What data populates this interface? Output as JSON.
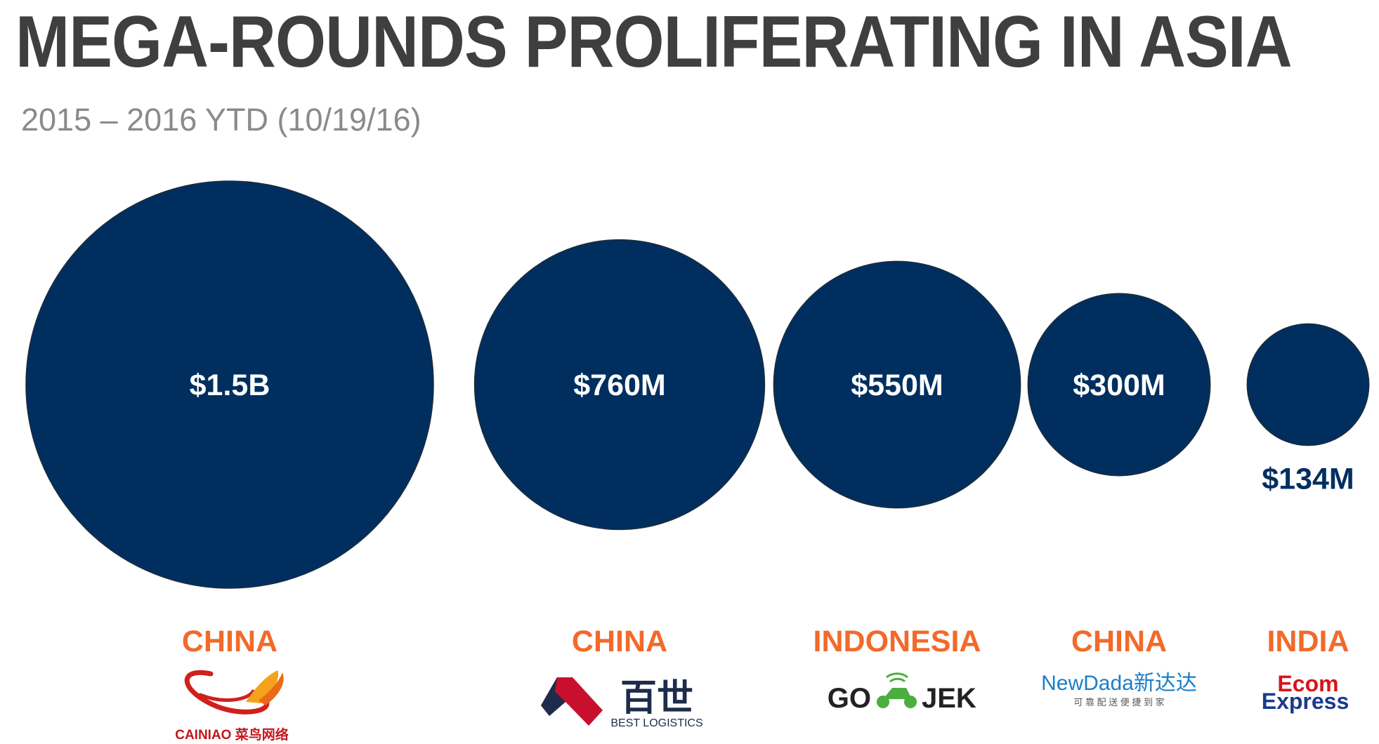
{
  "header": {
    "title": "MEGA-ROUNDS PROLIFERATING IN ASIA",
    "subtitle": "2015 – 2016 YTD (10/19/16)"
  },
  "colors": {
    "bubble": "#002f5f",
    "country": "#f26a2a",
    "title": "#3f3f3f",
    "subtitle": "#8a8a8a"
  },
  "chart_data": {
    "type": "bubble",
    "title": "MEGA-ROUNDS PROLIFERATING IN ASIA",
    "subtitle": "2015 – 2016 YTD (10/19/16)",
    "unit": "USD",
    "series": [
      {
        "values_millions": [
          1500,
          760,
          550,
          300,
          134
        ]
      }
    ],
    "items": [
      {
        "value_millions": 1500,
        "label": "$1.5B",
        "country": "CHINA",
        "logo": {
          "name": "cainiao-logo",
          "text": "CAINIAO 菜鸟网络"
        }
      },
      {
        "value_millions": 760,
        "label": "$760M",
        "country": "CHINA",
        "logo": {
          "name": "best-logistics-logo",
          "text": "百世",
          "subtext": "BEST LOGISTICS"
        }
      },
      {
        "value_millions": 550,
        "label": "$550M",
        "country": "INDONESIA",
        "logo": {
          "name": "gojek-logo",
          "text_left": "GO",
          "text_right": "JEK"
        }
      },
      {
        "value_millions": 300,
        "label": "$300M",
        "country": "CHINA",
        "logo": {
          "name": "newdada-logo",
          "text": "NewDada新达达",
          "subtext": "可 靠 配 送 便 捷 到 家"
        }
      },
      {
        "value_millions": 134,
        "label": "$134M",
        "country": "INDIA",
        "logo": {
          "name": "ecom-express-logo",
          "text_top": "Ecom",
          "text_bottom": "Express"
        }
      }
    ]
  }
}
